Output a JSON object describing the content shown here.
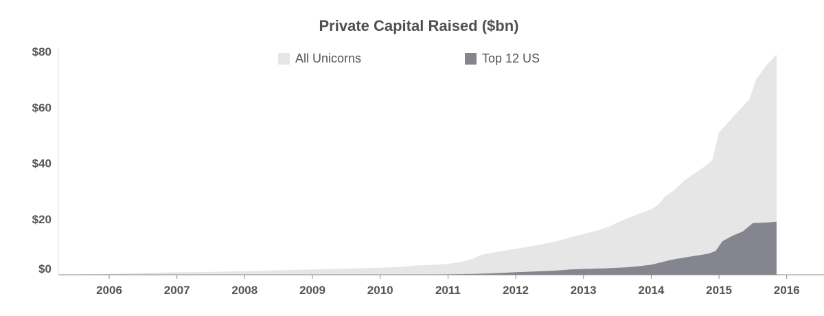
{
  "chart_data": {
    "type": "area",
    "title": "Private Capital Raised ($bn)",
    "xlabel": "",
    "ylabel": "",
    "x_ticks": [
      "2006",
      "2007",
      "2008",
      "2009",
      "2010",
      "2011",
      "2012",
      "2013",
      "2014",
      "2015",
      "2016"
    ],
    "y_ticks": [
      "$0",
      "$20",
      "$40",
      "$60",
      "$80"
    ],
    "y_tick_values": [
      0,
      20,
      40,
      60,
      80
    ],
    "xlim": [
      2005.25,
      2016.55
    ],
    "ylim": [
      0,
      80
    ],
    "stacked": false,
    "grid": false,
    "legend": "top-center",
    "series": [
      {
        "name": "All Unicorns",
        "color": "#e6e6e6",
        "points": [
          [
            2005.25,
            0
          ],
          [
            2006.0,
            0.3
          ],
          [
            2006.5,
            0.7
          ],
          [
            2007.0,
            0.9
          ],
          [
            2007.5,
            1.0
          ],
          [
            2008.0,
            1.3
          ],
          [
            2008.5,
            1.6
          ],
          [
            2009.0,
            1.9
          ],
          [
            2009.5,
            2.2
          ],
          [
            2010.0,
            2.5
          ],
          [
            2010.3,
            2.8
          ],
          [
            2010.5,
            3.3
          ],
          [
            2010.8,
            3.6
          ],
          [
            2011.0,
            3.9
          ],
          [
            2011.2,
            4.6
          ],
          [
            2011.35,
            5.6
          ],
          [
            2011.5,
            7.2
          ],
          [
            2011.7,
            8.1
          ],
          [
            2012.0,
            9.3
          ],
          [
            2012.3,
            10.5
          ],
          [
            2012.6,
            12.0
          ],
          [
            2012.8,
            13.4
          ],
          [
            2013.0,
            14.6
          ],
          [
            2013.2,
            15.8
          ],
          [
            2013.4,
            17.5
          ],
          [
            2013.6,
            19.8
          ],
          [
            2013.8,
            21.7
          ],
          [
            2014.0,
            23.5
          ],
          [
            2014.1,
            25.0
          ],
          [
            2014.2,
            28.0
          ],
          [
            2014.35,
            30.5
          ],
          [
            2014.5,
            34.0
          ],
          [
            2014.65,
            36.5
          ],
          [
            2014.8,
            39.0
          ],
          [
            2014.9,
            41.0
          ],
          [
            2015.0,
            51.0
          ],
          [
            2015.15,
            55.0
          ],
          [
            2015.3,
            59.0
          ],
          [
            2015.45,
            63.0
          ],
          [
            2015.55,
            70.0
          ],
          [
            2015.7,
            75.0
          ],
          [
            2015.85,
            79.0
          ]
        ]
      },
      {
        "name": "Top 12 US",
        "color": "#858590",
        "points": [
          [
            2005.25,
            0
          ],
          [
            2010.3,
            0
          ],
          [
            2011.0,
            0.15
          ],
          [
            2011.4,
            0.3
          ],
          [
            2011.7,
            0.6
          ],
          [
            2012.0,
            0.9
          ],
          [
            2012.3,
            1.2
          ],
          [
            2012.6,
            1.5
          ],
          [
            2012.8,
            1.9
          ],
          [
            2013.0,
            2.1
          ],
          [
            2013.3,
            2.3
          ],
          [
            2013.6,
            2.6
          ],
          [
            2013.8,
            3.0
          ],
          [
            2014.0,
            3.6
          ],
          [
            2014.15,
            4.5
          ],
          [
            2014.3,
            5.4
          ],
          [
            2014.5,
            6.2
          ],
          [
            2014.7,
            7.0
          ],
          [
            2014.85,
            7.6
          ],
          [
            2014.95,
            8.5
          ],
          [
            2015.05,
            12.0
          ],
          [
            2015.2,
            14.0
          ],
          [
            2015.35,
            15.5
          ],
          [
            2015.5,
            18.5
          ],
          [
            2015.7,
            18.7
          ],
          [
            2015.85,
            19.0
          ]
        ]
      }
    ]
  }
}
